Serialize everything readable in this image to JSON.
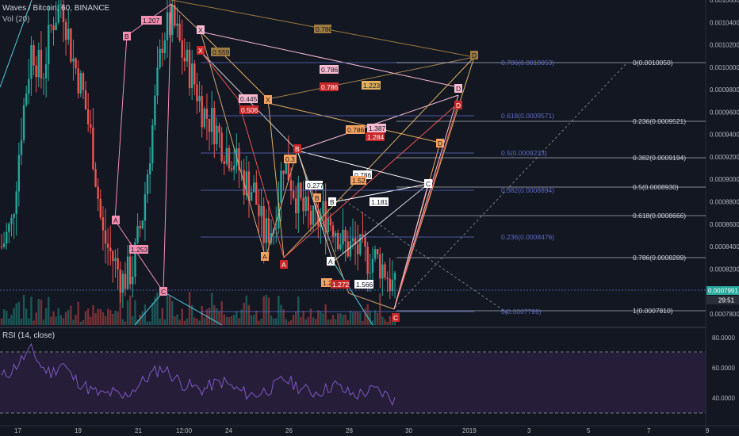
{
  "header": {
    "symbol": "Waves / Bitcoin, 60, BINANCE",
    "volume": "Vol (20)",
    "rsi": "RSI (14, close)"
  },
  "price_axis": {
    "ticks": [
      "0.0010600",
      "0.0010400",
      "0.0010200",
      "0.0010000",
      "0.0009800",
      "0.0009600",
      "0.0009400",
      "0.0009200",
      "0.0009000",
      "0.0008800",
      "0.0008600",
      "0.0008400",
      "0.0008200",
      "0.0007800"
    ],
    "current_price": "0.0007991",
    "countdown": "29:51"
  },
  "rsi_axis": {
    "ticks": [
      "80.0000",
      "60.0000",
      "40.0000"
    ]
  },
  "time_axis": {
    "ticks": [
      "17",
      "19",
      "21",
      "12:00",
      "24",
      "26",
      "28",
      "30",
      "2019",
      "3",
      "5",
      "7",
      "9"
    ]
  },
  "fib_left": [
    "0.786(0.0010053)",
    "0.618(0.0009571)",
    "0.5(0.0009233)",
    "0.382(0.0008894)",
    "0.236(0.0008476)",
    "0(0.0007799)"
  ],
  "fib_right": [
    "0(0.0010050)",
    "0.236(0.0009521)",
    "0.382(0.0009194)",
    "0.5(0.0008930)",
    "0.618(0.0008666)",
    "0.786(0.0008289)",
    "1(0.0007810)"
  ],
  "pattern_ratios": [
    "1.207",
    "0.786",
    "0.559",
    "0.786",
    "0.786",
    "1.223",
    "0.445",
    "0.506",
    "1.387",
    "0.786",
    "1.284",
    "0.3",
    "0.786",
    "0.277",
    "1.52",
    "1.181",
    "1.253",
    "1.2",
    "1.272",
    "1.566"
  ],
  "pattern_points": [
    "X",
    "B",
    "A",
    "C",
    "X",
    "X",
    "A",
    "B",
    "D",
    "D",
    "D",
    "D",
    "A",
    "B",
    "B",
    "A",
    "C",
    "C"
  ],
  "colors": {
    "background": "#131722",
    "up": "#26a69a",
    "down": "#ef5350",
    "rsi": "#7e57c2",
    "grid": "#1e222d"
  },
  "chart_data": {
    "type": "candlestick",
    "title": "Waves / Bitcoin, 60, BINANCE",
    "ylim": [
      0.00077,
      0.00106
    ],
    "x_ticks": [
      "17",
      "19",
      "21",
      "12:00",
      "24",
      "26",
      "28",
      "30",
      "2019",
      "3",
      "5",
      "7",
      "9"
    ],
    "series": [
      {
        "values": [
          0.00084,
          0.00086,
          0.00095,
          0.00102,
          0.00099,
          0.00104,
          0.00106,
          0.00101,
          0.00098,
          0.00093,
          0.00085,
          0.00083,
          0.00081,
          0.00082,
          0.00087,
          0.00095,
          0.00103,
          0.00104,
          0.00101,
          0.00099,
          0.00096,
          0.00095,
          0.00093,
          0.00092,
          0.0009,
          0.00089,
          0.00085,
          0.00086,
          0.00092,
          0.00089,
          0.00087,
          0.00086,
          0.00087,
          0.00086,
          0.00084,
          0.00084,
          0.00083,
          0.00083,
          0.00082,
          0.0008
        ]
      }
    ],
    "rsi": {
      "values": [
        55,
        60,
        68,
        75,
        62,
        58,
        66,
        55,
        50,
        45,
        42,
        44,
        40,
        46,
        52,
        58,
        62,
        56,
        50,
        48,
        46,
        50,
        52,
        47,
        44,
        42,
        45,
        48,
        54,
        50,
        46,
        44,
        46,
        50,
        45,
        42,
        44,
        46,
        43,
        38
      ],
      "ylim": [
        20,
        90
      ],
      "levels": [
        70,
        30
      ]
    }
  }
}
